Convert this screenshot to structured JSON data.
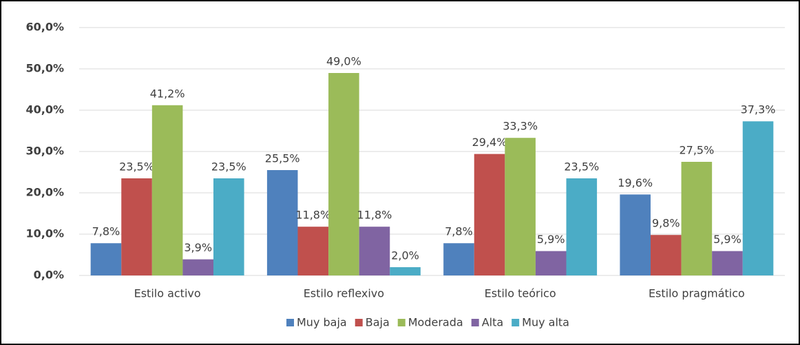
{
  "chart_data": {
    "type": "bar",
    "categories": [
      "Estilo activo",
      "Estilo reflexivo",
      "Estilo teórico",
      "Estilo pragmático"
    ],
    "series": [
      {
        "name": "Muy baja",
        "color": "#4f81bd",
        "values": [
          7.8,
          25.5,
          7.8,
          19.6
        ],
        "value_labels": [
          "7,8%",
          "25,5%",
          "7,8%",
          "19,6%"
        ]
      },
      {
        "name": "Baja",
        "color": "#c0504d",
        "values": [
          23.5,
          11.8,
          29.4,
          9.8
        ],
        "value_labels": [
          "23,5%",
          "11,8%",
          "29,4%",
          "9,8%"
        ]
      },
      {
        "name": "Moderada",
        "color": "#9bbb59",
        "values": [
          41.2,
          49.0,
          33.3,
          27.5
        ],
        "value_labels": [
          "41,2%",
          "49,0%",
          "33,3%",
          "27,5%"
        ]
      },
      {
        "name": "Alta",
        "color": "#8064a2",
        "values": [
          3.9,
          11.8,
          5.9,
          5.9
        ],
        "value_labels": [
          "3,9%",
          "11,8%",
          "5,9%",
          "5,9%"
        ]
      },
      {
        "name": "Muy alta",
        "color": "#4bacc6",
        "values": [
          23.5,
          2.0,
          23.5,
          37.3
        ],
        "value_labels": [
          "23,5%",
          "2,0%",
          "23,5%",
          "37,3%"
        ]
      }
    ],
    "ylim": [
      0,
      60
    ],
    "yticks": [
      {
        "value": 0,
        "label": "0,0%"
      },
      {
        "value": 10,
        "label": "10,0%"
      },
      {
        "value": 20,
        "label": "20,0%"
      },
      {
        "value": 30,
        "label": "30,0%"
      },
      {
        "value": 40,
        "label": "40,0%"
      },
      {
        "value": 50,
        "label": "50,0%"
      },
      {
        "value": 60,
        "label": "60,0%"
      }
    ],
    "grid": true,
    "legend": "bottom"
  }
}
